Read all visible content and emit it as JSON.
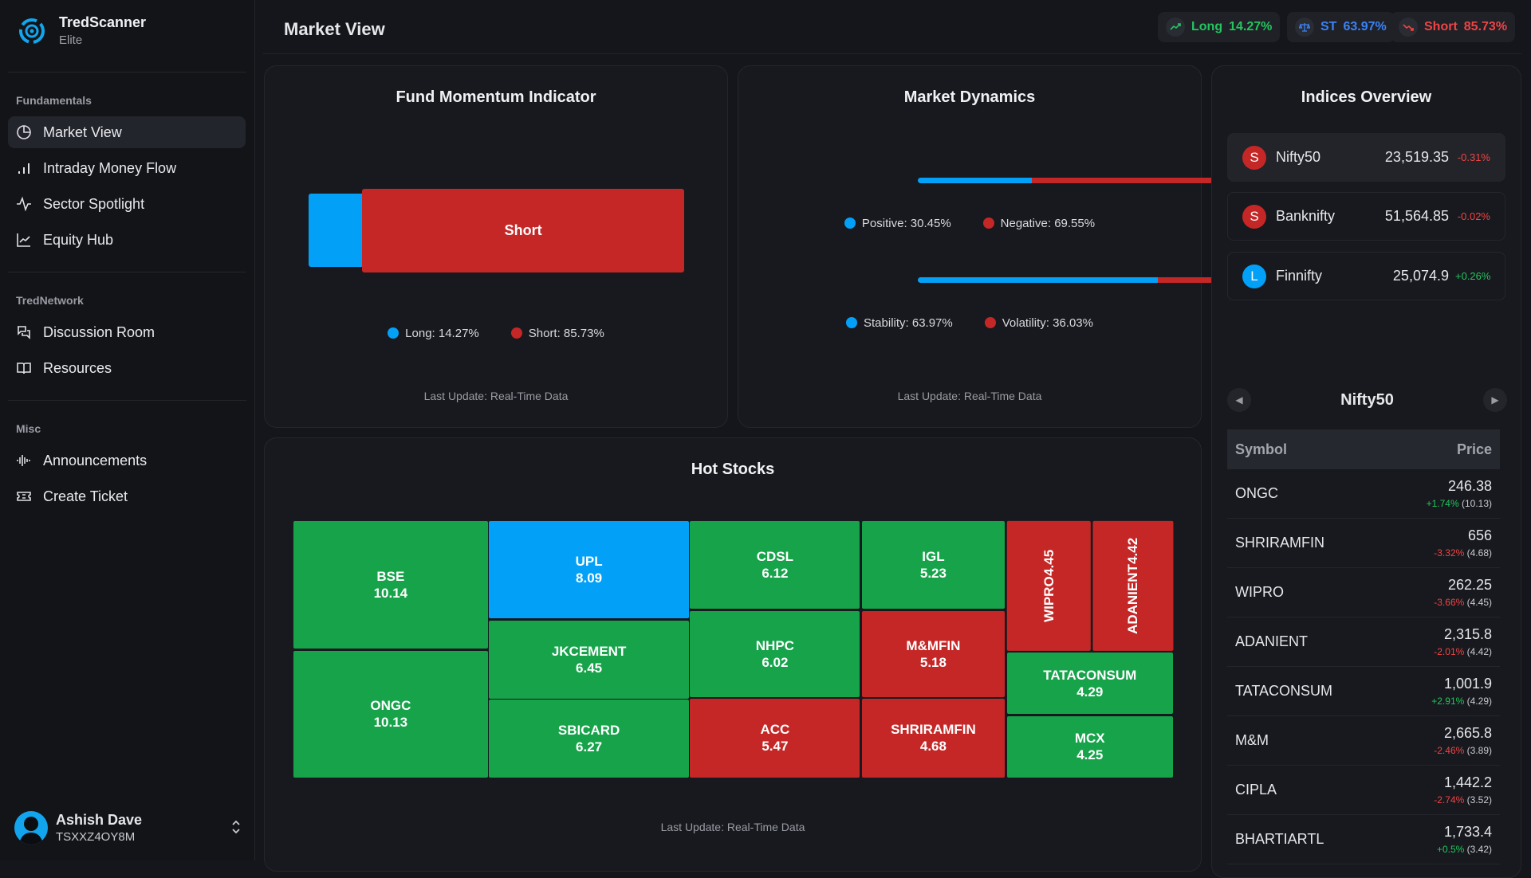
{
  "app": {
    "name": "TredScanner",
    "tier": "Elite"
  },
  "sidebar": {
    "sections": [
      {
        "label": "Fundamentals",
        "items": [
          {
            "label": "Market View"
          },
          {
            "label": "Intraday Money Flow"
          },
          {
            "label": "Sector Spotlight"
          },
          {
            "label": "Equity Hub"
          }
        ]
      },
      {
        "label": "TredNetwork",
        "items": [
          {
            "label": "Discussion Room"
          },
          {
            "label": "Resources"
          }
        ]
      },
      {
        "label": "Misc",
        "items": [
          {
            "label": "Announcements"
          },
          {
            "label": "Create Ticket"
          }
        ]
      }
    ],
    "user": {
      "name": "Ashish Dave",
      "id": "TSXXZ4OY8M"
    }
  },
  "header": {
    "title": "Market View",
    "badges": [
      {
        "label": "Long",
        "value": "14.27%",
        "color": "#22c55e"
      },
      {
        "label": "ST",
        "value": "63.97%",
        "color": "#3b82f6"
      },
      {
        "label": "Short",
        "value": "85.73%",
        "color": "#ef4444"
      }
    ]
  },
  "fund_momentum": {
    "title": "Fund Momentum Indicator",
    "bar_label": "Short",
    "long_pct": 14.27,
    "short_pct": 85.73,
    "legend": [
      "Long: 14.27%",
      "Short: 85.73%"
    ],
    "update": "Last Update: Real-Time Data"
  },
  "market_dynamics": {
    "title": "Market Dynamics",
    "positive_pct": 30.45,
    "stability_pct": 63.97,
    "legend1": [
      "Positive: 30.45%",
      "Negative: 69.55%"
    ],
    "legend2": [
      "Stability: 63.97%",
      "Volatility: 36.03%"
    ],
    "update": "Last Update: Real-Time Data"
  },
  "hot_stocks": {
    "title": "Hot Stocks",
    "update": "Last Update: Real-Time Data",
    "cells": [
      {
        "name": "BSE",
        "value": "10.14",
        "color": "#16a34a"
      },
      {
        "name": "ONGC",
        "value": "10.13",
        "color": "#16a34a"
      },
      {
        "name": "UPL",
        "value": "8.09",
        "color": "#03a0f8"
      },
      {
        "name": "JKCEMENT",
        "value": "6.45",
        "color": "#16a34a"
      },
      {
        "name": "SBICARD",
        "value": "6.27",
        "color": "#16a34a"
      },
      {
        "name": "CDSL",
        "value": "6.12",
        "color": "#16a34a"
      },
      {
        "name": "NHPC",
        "value": "6.02",
        "color": "#16a34a"
      },
      {
        "name": "ACC",
        "value": "5.47",
        "color": "#c52727"
      },
      {
        "name": "IGL",
        "value": "5.23",
        "color": "#16a34a"
      },
      {
        "name": "M&MFIN",
        "value": "5.18",
        "color": "#c52727"
      },
      {
        "name": "SHRIRAMFIN",
        "value": "4.68",
        "color": "#c52727"
      },
      {
        "name": "WIPRO",
        "value": "4.45",
        "color": "#c52727"
      },
      {
        "name": "ADANIENT",
        "value": "4.42",
        "color": "#c52727"
      },
      {
        "name": "TATACONSUM",
        "value": "4.29",
        "color": "#16a34a"
      },
      {
        "name": "MCX",
        "value": "4.25",
        "color": "#16a34a"
      }
    ]
  },
  "indices": {
    "title": "Indices Overview",
    "items": [
      {
        "badge": "S",
        "name": "Nifty50",
        "value": "23,519.35",
        "change": "-0.31%"
      },
      {
        "badge": "S",
        "name": "Banknifty",
        "value": "51,564.85",
        "change": "-0.02%"
      },
      {
        "badge": "L",
        "name": "Finnifty",
        "value": "25,074.9",
        "change": "+0.26%"
      }
    ],
    "selected": "Nifty50",
    "col_symbol": "Symbol",
    "col_price": "Price",
    "rows": [
      {
        "symbol": "ONGC",
        "price": "246.38",
        "change": "+1.74%",
        "score": "(10.13)"
      },
      {
        "symbol": "SHRIRAMFIN",
        "price": "656",
        "change": "-3.32%",
        "score": "(4.68)"
      },
      {
        "symbol": "WIPRO",
        "price": "262.25",
        "change": "-3.66%",
        "score": "(4.45)"
      },
      {
        "symbol": "ADANIENT",
        "price": "2,315.8",
        "change": "-2.01%",
        "score": "(4.42)"
      },
      {
        "symbol": "TATACONSUM",
        "price": "1,001.9",
        "change": "+2.91%",
        "score": "(4.29)"
      },
      {
        "symbol": "M&M",
        "price": "2,665.8",
        "change": "-2.46%",
        "score": "(3.89)"
      },
      {
        "symbol": "CIPLA",
        "price": "1,442.2",
        "change": "-2.74%",
        "score": "(3.52)"
      },
      {
        "symbol": "BHARTIARTL",
        "price": "1,733.4",
        "change": "+0.5%",
        "score": "(3.42)"
      }
    ]
  }
}
